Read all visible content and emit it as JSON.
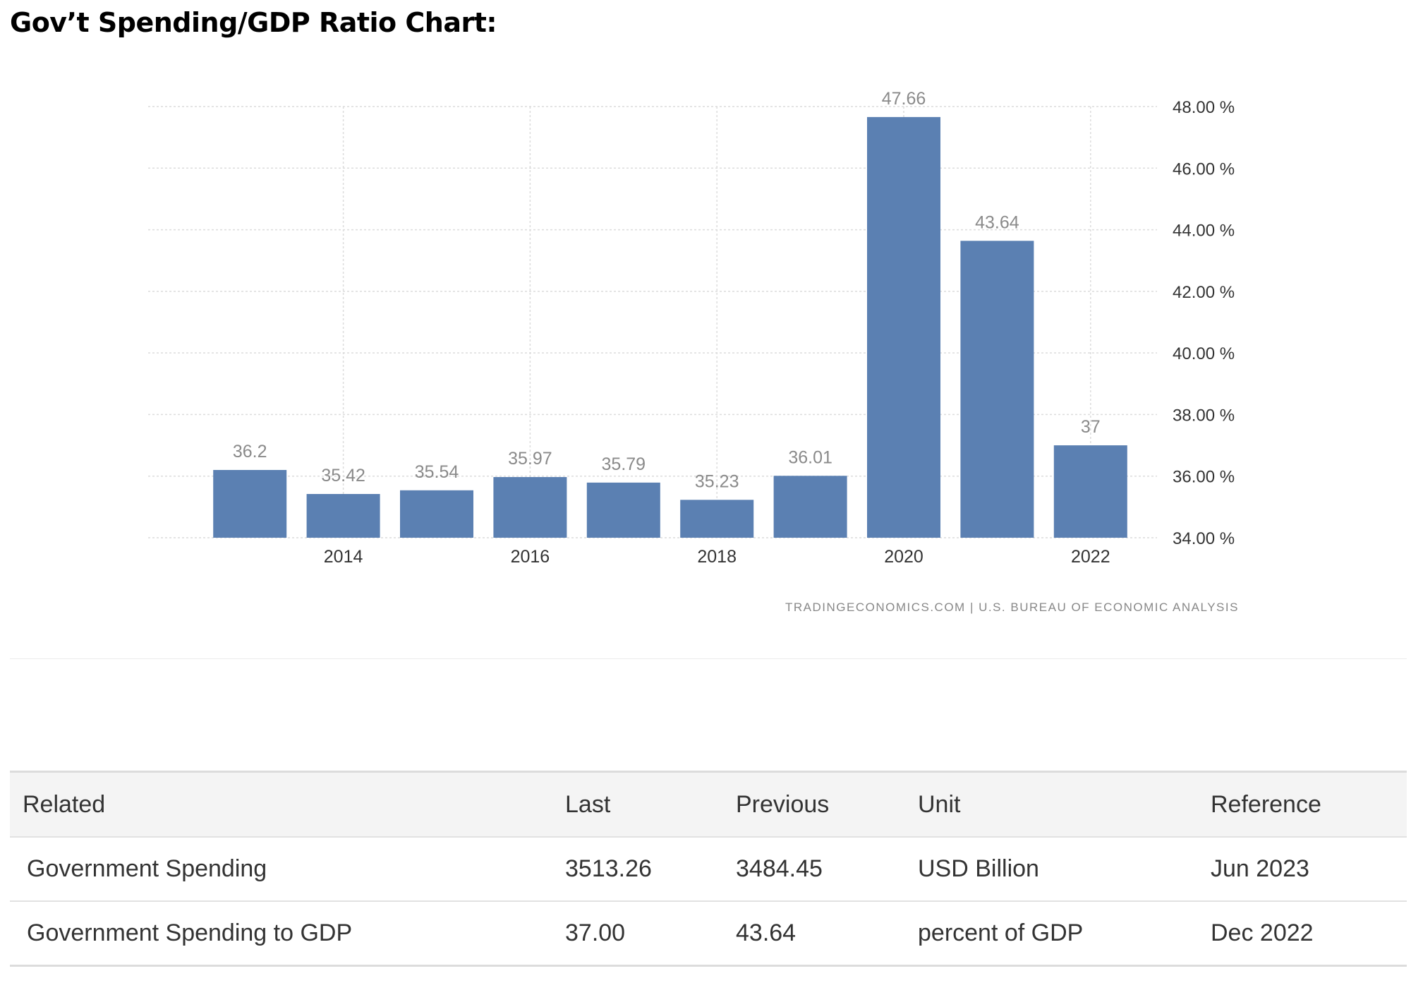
{
  "page": {
    "heading": "Gov’t Spending/GDP Ratio Chart:"
  },
  "chart_data": {
    "type": "bar",
    "categories": [
      "2013",
      "2014",
      "2015",
      "2016",
      "2017",
      "2018",
      "2019",
      "2020",
      "2021",
      "2022"
    ],
    "values": [
      36.2,
      35.42,
      35.54,
      35.97,
      35.79,
      35.23,
      36.01,
      47.66,
      43.64,
      37
    ],
    "value_labels": [
      "36.2",
      "35.42",
      "35.54",
      "35.97",
      "35.79",
      "35.23",
      "36.01",
      "47.66",
      "43.64",
      "37"
    ],
    "x_tick_labels": [
      "2014",
      "2016",
      "2018",
      "2020",
      "2022"
    ],
    "y_tick_values": [
      34,
      36,
      38,
      40,
      42,
      44,
      46,
      48
    ],
    "y_tick_labels": [
      "34.00 %",
      "36.00 %",
      "38.00 %",
      "40.00 %",
      "42.00 %",
      "44.00 %",
      "46.00 %",
      "48.00 %"
    ],
    "ylim": [
      34,
      48
    ],
    "y_axis_side": "right",
    "grid": true,
    "bar_color": "#5b80b2",
    "source": "TRADINGECONOMICS.COM  |  U.S. BUREAU OF ECONOMIC ANALYSIS"
  },
  "table": {
    "headers": [
      "Related",
      "Last",
      "Previous",
      "Unit",
      "Reference"
    ],
    "rows": [
      [
        "Government Spending",
        "3513.26",
        "3484.45",
        "USD Billion",
        "Jun 2023"
      ],
      [
        "Government Spending to GDP",
        "37.00",
        "43.64",
        "percent of GDP",
        "Dec 2022"
      ]
    ]
  }
}
